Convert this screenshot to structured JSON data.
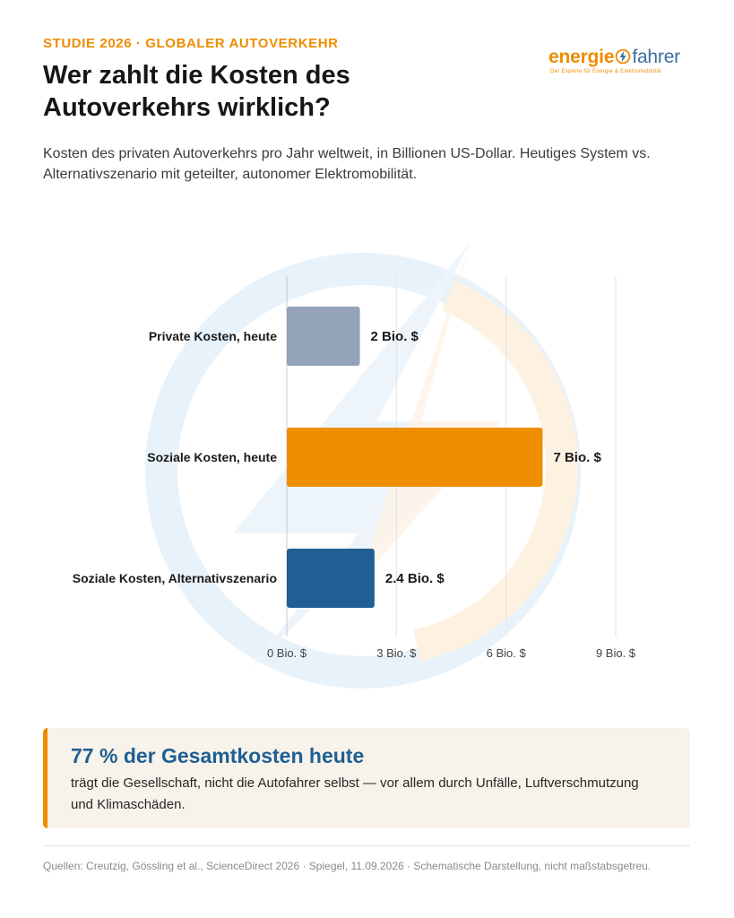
{
  "header": {
    "kicker": "STUDIE 2026 · GLOBALER AUTOVERKEHR",
    "title": "Wer zahlt die Kosten des Autoverkehrs wirklich?",
    "subtitle": "Kosten des privaten Autoverkehrs pro Jahr weltweit, in Billionen US-Dollar. Heutiges System vs. Alternativszenario mit geteilter, autonomer Elektromobilität."
  },
  "logo": {
    "part1": "energie",
    "part2": "fahrer",
    "tagline": "Der Experte für Energie & Elektromobilität",
    "icon": "lightning-bolt-icon"
  },
  "chart_data": {
    "type": "bar",
    "orientation": "horizontal",
    "categories": [
      "Private Kosten, heute",
      "Soziale Kosten, heute",
      "Soziale Kosten, Alternativszenario"
    ],
    "values": [
      2,
      7,
      2.4
    ],
    "value_labels": [
      "2 Bio. $",
      "7 Bio. $",
      "2.4 Bio. $"
    ],
    "colors": [
      "#94a3b8",
      "#ef8f00",
      "#1f5f94"
    ],
    "xlim": [
      0,
      9
    ],
    "x_ticks": [
      0,
      3,
      6,
      9
    ],
    "x_tick_labels": [
      "0 Bio. $",
      "3 Bio. $",
      "6 Bio. $",
      "9 Bio. $"
    ],
    "grid": "vertical",
    "legend": "none"
  },
  "callout": {
    "headline": "77 % der Gesamtkosten heute",
    "text": "trägt die Gesellschaft, nicht die Autofahrer selbst — vor allem durch Unfälle, Luftverschmutzung und Klimaschäden."
  },
  "footer": {
    "sources": "Quellen: Creutzig, Gössling et al., ScienceDirect 2026 · Spiegel, 11.09.2026 · Schematische Darstellung, nicht maßstabsgetreu."
  }
}
